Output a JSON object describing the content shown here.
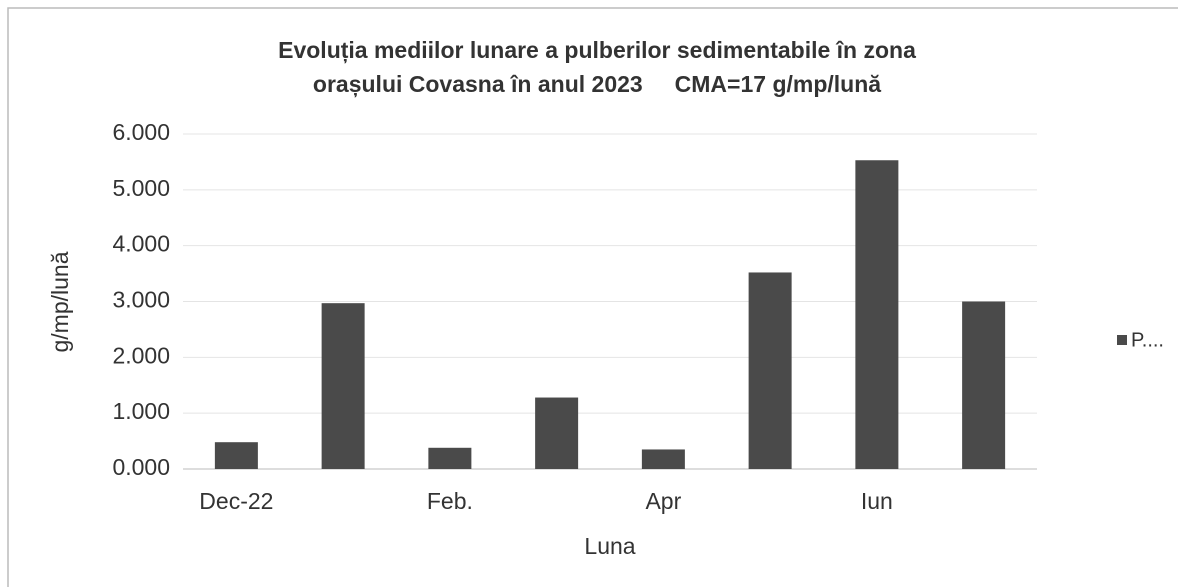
{
  "chart_data": {
    "type": "bar",
    "title": [
      "Evoluția mediilor lunare a pulberilor sedimentabile în zona",
      "orașului Covasna în anul 2023     CMA=17 g/mp/lună"
    ],
    "x_label": "Luna",
    "y_label": "g/mp/lună",
    "categories": [
      "Dec-22",
      null,
      "Feb.",
      null,
      "Apr",
      null,
      "Iun",
      null
    ],
    "series": [
      {
        "name": "P....",
        "color": "#4a4a4a",
        "values": [
          0.48,
          2.97,
          0.38,
          1.28,
          0.35,
          3.52,
          5.53,
          3.0
        ]
      }
    ],
    "ylim": [
      0,
      6
    ],
    "yticks": [
      {
        "value": 0,
        "label": "0.000"
      },
      {
        "value": 1,
        "label": "1.000"
      },
      {
        "value": 2,
        "label": "2.000"
      },
      {
        "value": 3,
        "label": "3.000"
      },
      {
        "value": 4,
        "label": "4.000"
      },
      {
        "value": 5,
        "label": "5.000"
      },
      {
        "value": 6,
        "label": "6.000"
      }
    ],
    "grid": true,
    "legend": "right"
  }
}
